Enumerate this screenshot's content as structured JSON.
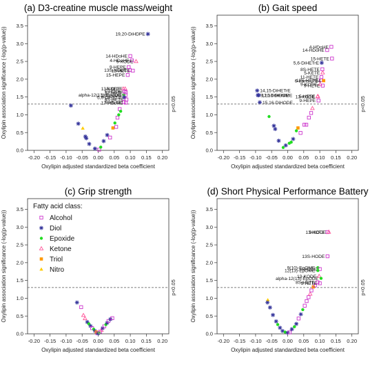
{
  "colors": {
    "Alcohol": "#cc33cc",
    "Diol": "#33339a",
    "Epoxide": "#22dd22",
    "Ketone": "#ff5599",
    "Triol": "#ff9900",
    "Nitro": "#ffcc00",
    "axis": "#333333",
    "threshold": "#555555"
  },
  "shared": {
    "xlabel": "Oxylipin adjusted standardized beta coefficient",
    "ylabel": "Oxylipin association significance (-log(p-value))",
    "threshold_label": "p<0.05",
    "threshold_value": 1.301,
    "xlim": [
      -0.22,
      0.22
    ],
    "ylim": [
      0,
      3.8
    ],
    "xticks": [
      "-0.20",
      "-0.15",
      "-0.10",
      "-0.05",
      "0.00",
      "0.05",
      "0.10",
      "0.15",
      "0.20"
    ],
    "yticks": [
      "0.0",
      "0.5",
      "1.0",
      "1.5",
      "2.0",
      "2.5",
      "3.0",
      "3.5"
    ]
  },
  "legend": {
    "title": "Fatty acid class:",
    "entries": [
      {
        "label": "Alcohol",
        "class": "Alcohol",
        "marker": "square"
      },
      {
        "label": "Diol",
        "class": "Diol",
        "marker": "star"
      },
      {
        "label": "Epoxide",
        "class": "Epoxide",
        "marker": "dot"
      },
      {
        "label": "Ketone",
        "class": "Ketone",
        "marker": "triangle"
      },
      {
        "label": "Triol",
        "class": "Triol",
        "marker": "filled-square"
      },
      {
        "label": "Nitro",
        "class": "Nitro",
        "marker": "filled-triangle"
      }
    ]
  },
  "chart_data": [
    {
      "type": "scatter",
      "title": "(a) D3-creatine muscle mass/weight",
      "points": [
        {
          "x": 0.155,
          "y": 3.27,
          "class": "Diol",
          "label": "19,20-DiHDPE"
        },
        {
          "x": 0.1,
          "y": 2.65,
          "class": "Alcohol",
          "label": "14-HDoHE"
        },
        {
          "x": 0.105,
          "y": 2.53,
          "class": "Alcohol",
          "label": "4-HDoHE"
        },
        {
          "x": 0.118,
          "y": 2.5,
          "class": "Ketone",
          "label": "9-KODE"
        },
        {
          "x": 0.095,
          "y": 2.34,
          "class": "Alcohol",
          "label": "9-HEPE"
        },
        {
          "x": 0.098,
          "y": 2.26,
          "class": "Alcohol",
          "label": "13S-HODE"
        },
        {
          "x": 0.108,
          "y": 2.24,
          "class": "Alcohol",
          "label": "13-HETE"
        },
        {
          "x": 0.092,
          "y": 2.12,
          "class": "Alcohol",
          "label": "15-HEPE"
        },
        {
          "x": 0.078,
          "y": 1.73,
          "class": "Ketone",
          "label": "13-KODE"
        },
        {
          "x": 0.084,
          "y": 1.73,
          "class": "Ketone",
          "label": "5-KETE"
        },
        {
          "x": 0.082,
          "y": 1.66,
          "class": "Alcohol",
          "label": "5-HODE"
        },
        {
          "x": 0.086,
          "y": 1.63,
          "class": "Alcohol",
          "label": "11-HETE"
        },
        {
          "x": 0.08,
          "y": 1.56,
          "class": "Epoxide",
          "label": "alpha-12(13)-EpODE"
        },
        {
          "x": 0.085,
          "y": 1.55,
          "class": "Alcohol",
          "label": "12S-HEPE"
        },
        {
          "x": 0.081,
          "y": 1.49,
          "class": "Diol",
          "label": "5,6-DiHETE"
        },
        {
          "x": 0.088,
          "y": 1.43,
          "class": "Alcohol",
          "label": "8S-HETE"
        },
        {
          "x": 0.08,
          "y": 1.36,
          "class": "Alcohol",
          "label": "9-HETE"
        },
        {
          "x": 0.086,
          "y": 1.34,
          "class": "Alcohol",
          "label": "17-HDoHE"
        },
        {
          "x": -0.085,
          "y": 1.26,
          "class": "Diol"
        },
        {
          "x": -0.062,
          "y": 0.75,
          "class": "Diol"
        },
        {
          "x": -0.048,
          "y": 0.62,
          "class": "Nitro"
        },
        {
          "x": -0.04,
          "y": 0.39,
          "class": "Diol"
        },
        {
          "x": -0.037,
          "y": 0.34,
          "class": "Diol"
        },
        {
          "x": -0.028,
          "y": 0.18,
          "class": "Diol"
        },
        {
          "x": -0.01,
          "y": 0.05,
          "class": "Diol"
        },
        {
          "x": 0.003,
          "y": 0.02,
          "class": "Alcohol"
        },
        {
          "x": 0.008,
          "y": 0.09,
          "class": "Epoxide"
        },
        {
          "x": 0.017,
          "y": 0.26,
          "class": "Diol"
        },
        {
          "x": 0.028,
          "y": 0.43,
          "class": "Diol"
        },
        {
          "x": 0.037,
          "y": 0.36,
          "class": "Alcohol"
        },
        {
          "x": 0.046,
          "y": 0.63,
          "class": "Triol"
        },
        {
          "x": 0.052,
          "y": 0.77,
          "class": "Epoxide"
        },
        {
          "x": 0.056,
          "y": 0.66,
          "class": "Alcohol"
        },
        {
          "x": 0.06,
          "y": 0.92,
          "class": "Alcohol"
        },
        {
          "x": 0.064,
          "y": 1.0,
          "class": "Epoxide"
        },
        {
          "x": 0.067,
          "y": 1.16,
          "class": "Alcohol"
        },
        {
          "x": 0.07,
          "y": 1.1,
          "class": "Epoxide"
        }
      ]
    },
    {
      "type": "scatter",
      "title": "(b) Gait speed",
      "points": [
        {
          "x": 0.136,
          "y": 2.91,
          "class": "Alcohol",
          "label": "4-HDoHE"
        },
        {
          "x": 0.123,
          "y": 2.82,
          "class": "Alcohol",
          "label": "14-HDoHE"
        },
        {
          "x": 0.138,
          "y": 2.58,
          "class": "Alcohol",
          "label": "15-HETE"
        },
        {
          "x": 0.106,
          "y": 2.46,
          "class": "Diol",
          "label": "5,6-DiHETrE"
        },
        {
          "x": 0.108,
          "y": 2.28,
          "class": "Alcohol",
          "label": "8S-HETE"
        },
        {
          "x": 0.109,
          "y": 2.18,
          "class": "Ketone",
          "label": "5-KETE"
        },
        {
          "x": 0.105,
          "y": 2.06,
          "class": "Alcohol",
          "label": "11-HETE"
        },
        {
          "x": 0.103,
          "y": 1.97,
          "class": "Alcohol",
          "label": "12S-HEPE"
        },
        {
          "x": 0.112,
          "y": 1.96,
          "class": "Triol",
          "label": "6-trans-LTB4"
        },
        {
          "x": 0.101,
          "y": 1.86,
          "class": "Ketone",
          "label": "9-KODE"
        },
        {
          "x": 0.109,
          "y": 1.82,
          "class": "Alcohol",
          "label": "9-HETE"
        },
        {
          "x": -0.095,
          "y": 1.68,
          "class": "Diol",
          "label": "14,15-DiHETrE"
        },
        {
          "x": -0.093,
          "y": 1.55,
          "class": "Diol",
          "label": "9,10-DiHOME"
        },
        {
          "x": -0.09,
          "y": 1.55,
          "class": "Diol",
          "label": "12,13-DiHOME"
        },
        {
          "x": 0.093,
          "y": 1.51,
          "class": "Ketone",
          "label": "13-KODE"
        },
        {
          "x": 0.094,
          "y": 1.52,
          "class": "Ketone",
          "label": "5-HETE"
        },
        {
          "x": 0.096,
          "y": 1.4,
          "class": "Alcohol",
          "label": "9-HEPE"
        },
        {
          "x": -0.087,
          "y": 1.35,
          "class": "Diol",
          "label": "15,16-DiHODE"
        },
        {
          "x": -0.058,
          "y": 0.95,
          "class": "Epoxide"
        },
        {
          "x": -0.043,
          "y": 0.69,
          "class": "Diol"
        },
        {
          "x": -0.039,
          "y": 0.6,
          "class": "Diol"
        },
        {
          "x": -0.028,
          "y": 0.27,
          "class": "Diol"
        },
        {
          "x": -0.014,
          "y": 0.08,
          "class": "Epoxide"
        },
        {
          "x": -0.006,
          "y": 0.14,
          "class": "Diol"
        },
        {
          "x": 0.005,
          "y": 0.2,
          "class": "Epoxide"
        },
        {
          "x": 0.011,
          "y": 0.23,
          "class": "Epoxide"
        },
        {
          "x": 0.017,
          "y": 0.32,
          "class": "Diol"
        },
        {
          "x": 0.027,
          "y": 0.55,
          "class": "Epoxide"
        },
        {
          "x": 0.032,
          "y": 0.63,
          "class": "Triol"
        },
        {
          "x": 0.04,
          "y": 0.49,
          "class": "Alcohol"
        },
        {
          "x": 0.052,
          "y": 0.72,
          "class": "Alcohol"
        },
        {
          "x": 0.058,
          "y": 0.72,
          "class": "Alcohol"
        },
        {
          "x": 0.066,
          "y": 0.92,
          "class": "Alcohol"
        },
        {
          "x": 0.073,
          "y": 1.05,
          "class": "Alcohol"
        },
        {
          "x": 0.077,
          "y": 1.18,
          "class": "Ketone"
        }
      ]
    },
    {
      "type": "scatter",
      "title": "(c) Grip strength",
      "points": [
        {
          "x": -0.066,
          "y": 0.88,
          "class": "Diol"
        },
        {
          "x": -0.053,
          "y": 0.75,
          "class": "Alcohol"
        },
        {
          "x": -0.046,
          "y": 0.52,
          "class": "Ketone"
        },
        {
          "x": -0.041,
          "y": 0.43,
          "class": "Ketone"
        },
        {
          "x": -0.034,
          "y": 0.33,
          "class": "Diol"
        },
        {
          "x": -0.029,
          "y": 0.28,
          "class": "Epoxide"
        },
        {
          "x": -0.024,
          "y": 0.22,
          "class": "Diol"
        },
        {
          "x": -0.019,
          "y": 0.16,
          "class": "Alcohol"
        },
        {
          "x": -0.014,
          "y": 0.13,
          "class": "Epoxide"
        },
        {
          "x": -0.01,
          "y": 0.08,
          "class": "Diol"
        },
        {
          "x": -0.006,
          "y": 0.05,
          "class": "Triol"
        },
        {
          "x": -0.003,
          "y": 0.02,
          "class": "Alcohol"
        },
        {
          "x": 0.0,
          "y": 0.01,
          "class": "Diol"
        },
        {
          "x": 0.003,
          "y": 0.03,
          "class": "Epoxide"
        },
        {
          "x": 0.006,
          "y": 0.06,
          "class": "Alcohol"
        },
        {
          "x": 0.01,
          "y": 0.1,
          "class": "Ketone"
        },
        {
          "x": 0.014,
          "y": 0.16,
          "class": "Diol"
        },
        {
          "x": 0.019,
          "y": 0.21,
          "class": "Alcohol"
        },
        {
          "x": 0.024,
          "y": 0.26,
          "class": "Epoxide"
        },
        {
          "x": 0.028,
          "y": 0.31,
          "class": "Diol"
        },
        {
          "x": 0.032,
          "y": 0.36,
          "class": "Alcohol"
        },
        {
          "x": 0.038,
          "y": 0.41,
          "class": "Diol"
        },
        {
          "x": 0.044,
          "y": 0.44,
          "class": "Alcohol"
        }
      ]
    },
    {
      "type": "scatter",
      "title": "(d) Short Physical Performance Battery",
      "points": [
        {
          "x": 0.124,
          "y": 2.86,
          "class": "Alcohol",
          "label": "13-HOTE"
        },
        {
          "x": 0.128,
          "y": 2.86,
          "class": "Ketone",
          "label": "9-KODE"
        },
        {
          "x": 0.124,
          "y": 2.18,
          "class": "Alcohol",
          "label": "13S-HODE"
        },
        {
          "x": 0.094,
          "y": 1.86,
          "class": "Epoxide",
          "label": "9(10)-EpOME"
        },
        {
          "x": 0.1,
          "y": 1.82,
          "class": "Alcohol",
          "label": "9-HODE"
        },
        {
          "x": 0.094,
          "y": 1.78,
          "class": "Epoxide",
          "label": "12(13)-EpOME"
        },
        {
          "x": 0.098,
          "y": 1.62,
          "class": "Ketone",
          "label": "13-KODE"
        },
        {
          "x": 0.104,
          "y": 1.56,
          "class": "Epoxide",
          "label": "alpha-12(13)-EpODE"
        },
        {
          "x": 0.093,
          "y": 1.45,
          "class": "Alcohol",
          "label": "8S-HETE"
        },
        {
          "x": 0.1,
          "y": 1.42,
          "class": "Alcohol",
          "label": "9-HETE"
        },
        {
          "x": -0.062,
          "y": 0.95,
          "class": "Nitro"
        },
        {
          "x": -0.063,
          "y": 0.88,
          "class": "Diol"
        },
        {
          "x": -0.055,
          "y": 0.74,
          "class": "Diol"
        },
        {
          "x": -0.046,
          "y": 0.53,
          "class": "Diol"
        },
        {
          "x": -0.036,
          "y": 0.35,
          "class": "Diol"
        },
        {
          "x": -0.031,
          "y": 0.26,
          "class": "Epoxide"
        },
        {
          "x": -0.024,
          "y": 0.17,
          "class": "Diol"
        },
        {
          "x": -0.016,
          "y": 0.08,
          "class": "Diol"
        },
        {
          "x": -0.008,
          "y": 0.05,
          "class": "Epoxide"
        },
        {
          "x": 0.0,
          "y": 0.03,
          "class": "Diol"
        },
        {
          "x": 0.006,
          "y": 0.04,
          "class": "Alcohol"
        },
        {
          "x": 0.013,
          "y": 0.13,
          "class": "Diol"
        },
        {
          "x": 0.021,
          "y": 0.2,
          "class": "Epoxide"
        },
        {
          "x": 0.027,
          "y": 0.28,
          "class": "Diol"
        },
        {
          "x": 0.034,
          "y": 0.43,
          "class": "Alcohol"
        },
        {
          "x": 0.041,
          "y": 0.55,
          "class": "Diol"
        },
        {
          "x": 0.047,
          "y": 0.68,
          "class": "Epoxide"
        },
        {
          "x": 0.053,
          "y": 0.79,
          "class": "Alcohol"
        },
        {
          "x": 0.059,
          "y": 0.92,
          "class": "Alcohol"
        },
        {
          "x": 0.065,
          "y": 1.03,
          "class": "Alcohol"
        },
        {
          "x": 0.07,
          "y": 1.12,
          "class": "Ketone"
        },
        {
          "x": 0.074,
          "y": 1.22,
          "class": "Alcohol"
        },
        {
          "x": 0.08,
          "y": 1.32,
          "class": "Triol"
        },
        {
          "x": 0.085,
          "y": 1.36,
          "class": "Alcohol"
        }
      ]
    }
  ]
}
